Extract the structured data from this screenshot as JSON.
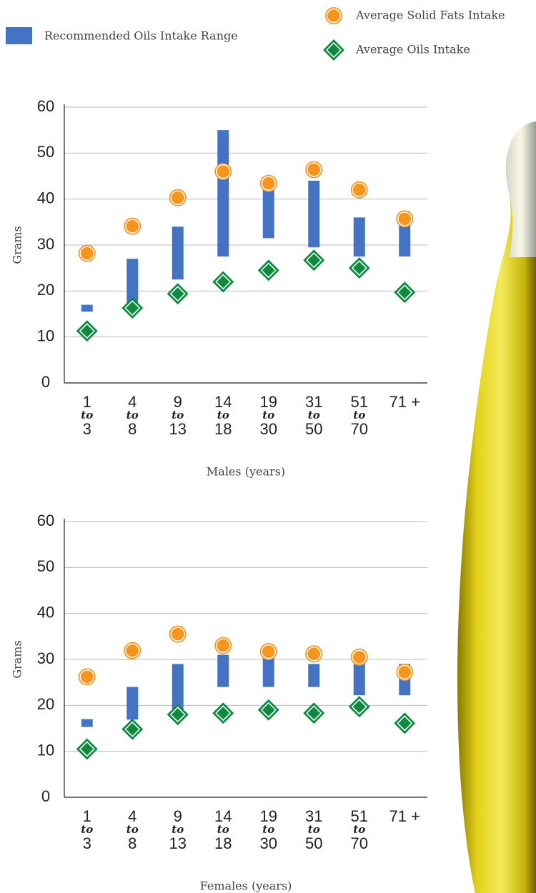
{
  "chart_data": [
    {
      "type": "range-dot",
      "x_label": "Males (years)",
      "y_label": "Grams",
      "categories": [
        [
          "1",
          "to",
          "3"
        ],
        [
          "4",
          "to",
          "8"
        ],
        [
          "9",
          "to",
          "13"
        ],
        [
          "14",
          "to",
          "18"
        ],
        [
          "19",
          "to",
          "30"
        ],
        [
          "31",
          "to",
          "50"
        ],
        [
          "51",
          "to",
          "70"
        ],
        [
          "71 +"
        ]
      ],
      "ylim": [
        0,
        60
      ],
      "yticks": [
        0,
        10,
        20,
        30,
        40,
        50,
        60
      ],
      "grid": true,
      "series": [
        {
          "name": "Recommended Oils Intake Range",
          "color": "#4472c4",
          "low": [
            15.5,
            17,
            22.5,
            27.5,
            31.5,
            29.5,
            27.5,
            27.5
          ],
          "high": [
            17,
            27,
            34,
            55,
            42.5,
            44,
            36,
            35
          ]
        },
        {
          "name": "Average Solid Fats Intake",
          "color": "#f7941d",
          "marker": "circle",
          "values": [
            28.2,
            34.1,
            40.3,
            46,
            43.4,
            46.4,
            42,
            35.7
          ]
        },
        {
          "name": "Average Oils Intake",
          "color": "#0d8a3f",
          "marker": "diamond",
          "values": [
            11.3,
            16.3,
            19.4,
            22,
            24.5,
            26.7,
            25,
            19.7
          ]
        }
      ]
    },
    {
      "type": "range-dot",
      "x_label": "Females (years)",
      "y_label": "Grams",
      "categories": [
        [
          "1",
          "to",
          "3"
        ],
        [
          "4",
          "to",
          "8"
        ],
        [
          "9",
          "to",
          "13"
        ],
        [
          "14",
          "to",
          "18"
        ],
        [
          "19",
          "to",
          "30"
        ],
        [
          "31",
          "to",
          "50"
        ],
        [
          "51",
          "to",
          "70"
        ],
        [
          "71 +"
        ]
      ],
      "ylim": [
        0,
        60
      ],
      "yticks": [
        0,
        10,
        20,
        30,
        40,
        50,
        60
      ],
      "grid": true,
      "series": [
        {
          "color": "#4472c4",
          "low": [
            15.3,
            16.9,
            18,
            24,
            24,
            24,
            22.2,
            22.2
          ],
          "high": [
            17,
            24,
            29,
            31,
            31,
            29,
            29,
            29
          ]
        },
        {
          "color": "#f7941d",
          "marker": "circle",
          "values": [
            26.2,
            31.9,
            35.5,
            33,
            31.7,
            31.2,
            30.5,
            27.2
          ]
        },
        {
          "color": "#0d8a3f",
          "marker": "diamond",
          "values": [
            10.5,
            14.8,
            18,
            18.3,
            19,
            18.3,
            19.7,
            16.1
          ]
        }
      ]
    }
  ]
}
